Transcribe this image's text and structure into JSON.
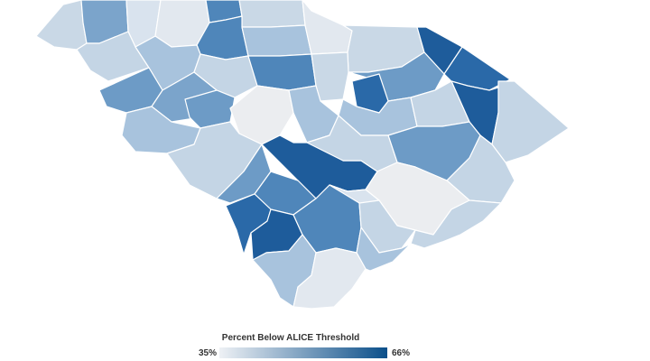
{
  "legend": {
    "title": "Percent Below ALICE Threshold",
    "min_label": "35%",
    "max_label": "66%",
    "min_value": 35,
    "max_value": 66,
    "color_low": "#eef1f5",
    "color_high": "#0b4f8a"
  },
  "map_colors": {
    "c0": "#c9d8e6",
    "c1": "#7ba4cb",
    "c2": "#d9e3ee",
    "c3": "#e2e8ef",
    "c4": "#4f86ba",
    "c5": "#a8c3dd",
    "c6": "#c4d5e5",
    "c7": "#e8ecf1",
    "c8": "#6d9bc6",
    "c9": "#2a69a8",
    "c10": "#1e5c9b",
    "c11": "#ebedf0"
  }
}
